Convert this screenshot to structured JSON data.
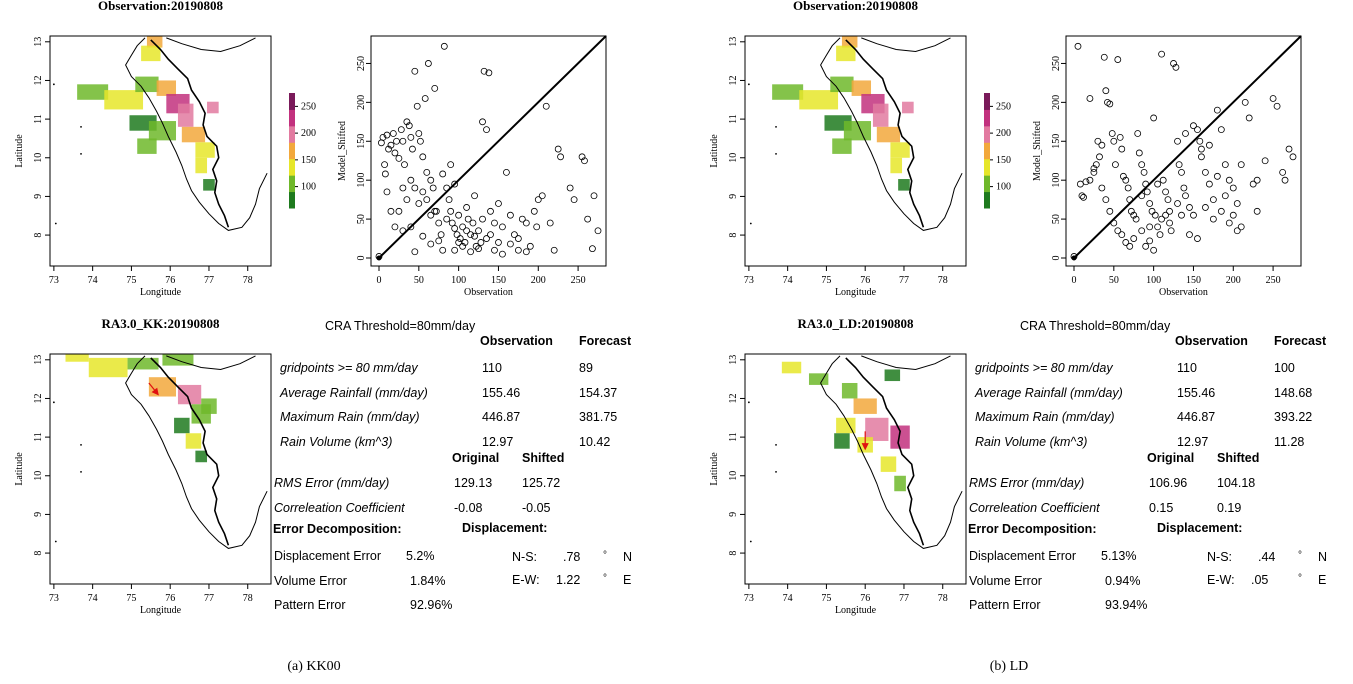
{
  "panels": [
    {
      "caption": "(a) KK00",
      "obs_map": {
        "title": "Observation:20190808"
      },
      "fc_map": {
        "title": "RA3.0_KK:20190808"
      },
      "map_axes": {
        "xlabel": "Longitude",
        "ylabel": "Latitude",
        "xticks": [
          73,
          74,
          75,
          76,
          77,
          78
        ],
        "yticks": [
          8,
          9,
          10,
          11,
          12,
          13
        ]
      },
      "colorbar": {
        "ticks": [
          100,
          150,
          200,
          250
        ],
        "range": [
          60,
          275
        ],
        "colors": [
          "#1e7a1e",
          "#6fb82a",
          "#e6e62a",
          "#f2a83c",
          "#e27aa0",
          "#c2317e",
          "#7a1a5a"
        ]
      },
      "displacement_arrow": {
        "from": [
          75.45,
          12.4
        ],
        "to": [
          75.65,
          12.15
        ]
      },
      "stats": {
        "cra_threshold": "CRA Threshold=80mm/day",
        "col_observation": "Observation",
        "col_forecast": "Forecast",
        "rows": [
          {
            "label": "gridpoints >= 80 mm/day",
            "obs": "110",
            "fc": "89"
          },
          {
            "label": "Average Rainfall (mm/day)",
            "obs": "155.46",
            "fc": "154.37"
          },
          {
            "label": "Maximum Rain (mm/day)",
            "obs": "446.87",
            "fc": "381.75"
          },
          {
            "label": "Rain Volume (km^3)",
            "obs": "12.97",
            "fc": "10.42"
          }
        ],
        "col_original": "Original",
        "col_shifted": "Shifted",
        "rows2": [
          {
            "label": "RMS Error (mm/day)",
            "orig": "129.13",
            "shift": "125.72"
          },
          {
            "label": "Correleation Coefficient",
            "orig": "-0.08",
            "shift": "-0.05"
          }
        ],
        "error_heading": "Error Decomposition:",
        "disp_heading": "Displacement:",
        "errors": [
          {
            "label": "Displacement Error",
            "value": "5.2%"
          },
          {
            "label": "Volume Error",
            "value": "1.84%"
          },
          {
            "label": "Pattern Error",
            "value": "92.96%"
          }
        ],
        "displacement": [
          {
            "label": "N-S:",
            "value": ".78",
            "deg": "°",
            "dir": "N"
          },
          {
            "label": "E-W:",
            "value": "1.22",
            "deg": "°",
            "dir": "E"
          }
        ]
      }
    },
    {
      "caption": "(b) LD",
      "obs_map": {
        "title": "Observation:20190808"
      },
      "fc_map": {
        "title": "RA3.0_LD:20190808"
      },
      "map_axes": {
        "xlabel": "Longitude",
        "ylabel": "Latitude",
        "xticks": [
          73,
          74,
          75,
          76,
          77,
          78
        ],
        "yticks": [
          8,
          9,
          10,
          11,
          12,
          13
        ]
      },
      "colorbar": {
        "ticks": [
          100,
          150,
          200,
          250
        ],
        "range": [
          60,
          275
        ],
        "colors": [
          "#1e7a1e",
          "#6fb82a",
          "#e6e62a",
          "#f2a83c",
          "#e27aa0",
          "#c2317e",
          "#7a1a5a"
        ]
      },
      "displacement_arrow": {
        "from": [
          76.0,
          11.15
        ],
        "to": [
          76.0,
          10.75
        ]
      },
      "stats": {
        "cra_threshold": "CRA Threshold=80mm/day",
        "col_observation": "Observation",
        "col_forecast": "Forecast",
        "rows": [
          {
            "label": "gridpoints >= 80 mm/day",
            "obs": "110",
            "fc": "100"
          },
          {
            "label": "Average Rainfall (mm/day)",
            "obs": "155.46",
            "fc": "148.68"
          },
          {
            "label": "Maximum Rain (mm/day)",
            "obs": "446.87",
            "fc": "393.22"
          },
          {
            "label": "Rain Volume (km^3)",
            "obs": "12.97",
            "fc": "11.28"
          }
        ],
        "col_original": "Original",
        "col_shifted": "Shifted",
        "rows2": [
          {
            "label": "RMS Error (mm/day)",
            "orig": "106.96",
            "shift": "104.18"
          },
          {
            "label": "Correleation Coefficient",
            "orig": "0.15",
            "shift": "0.19"
          }
        ],
        "error_heading": "Error Decomposition:",
        "disp_heading": "Displacement:",
        "errors": [
          {
            "label": "Displacement Error",
            "value": "5.13%"
          },
          {
            "label": "Volume Error",
            "value": "0.94%"
          },
          {
            "label": "Pattern Error",
            "value": "93.94%"
          }
        ],
        "displacement": [
          {
            "label": "N-S:",
            "value": ".44",
            "deg": "°",
            "dir": "N"
          },
          {
            "label": "E-W:",
            "value": ".05",
            "deg": "°",
            "dir": "E"
          }
        ]
      }
    }
  ],
  "chart_data": [
    {
      "type": "scatter",
      "panel": "(a) KK00",
      "xlabel": "Observation",
      "ylabel": "Model_Shifted",
      "xlim": [
        0,
        275
      ],
      "ylim": [
        0,
        275
      ],
      "xticks": [
        0,
        50,
        100,
        150,
        200,
        250
      ],
      "yticks": [
        0,
        50,
        100,
        150,
        200,
        250
      ],
      "reference_line": "y = x",
      "points": [
        [
          3,
          148
        ],
        [
          5,
          155
        ],
        [
          7,
          120
        ],
        [
          8,
          108
        ],
        [
          10,
          158
        ],
        [
          12,
          140
        ],
        [
          15,
          145
        ],
        [
          18,
          160
        ],
        [
          20,
          135
        ],
        [
          22,
          150
        ],
        [
          25,
          128
        ],
        [
          28,
          165
        ],
        [
          30,
          150
        ],
        [
          32,
          120
        ],
        [
          35,
          175
        ],
        [
          38,
          170
        ],
        [
          40,
          155
        ],
        [
          42,
          140
        ],
        [
          45,
          240
        ],
        [
          48,
          195
        ],
        [
          50,
          160
        ],
        [
          52,
          150
        ],
        [
          55,
          130
        ],
        [
          58,
          205
        ],
        [
          60,
          110
        ],
        [
          62,
          250
        ],
        [
          65,
          100
        ],
        [
          68,
          90
        ],
        [
          70,
          218
        ],
        [
          72,
          60
        ],
        [
          75,
          45
        ],
        [
          78,
          30
        ],
        [
          80,
          108
        ],
        [
          82,
          272
        ],
        [
          85,
          90
        ],
        [
          88,
          75
        ],
        [
          90,
          60
        ],
        [
          92,
          45
        ],
        [
          95,
          38
        ],
        [
          98,
          30
        ],
        [
          100,
          55
        ],
        [
          102,
          25
        ],
        [
          105,
          40
        ],
        [
          108,
          20
        ],
        [
          110,
          35
        ],
        [
          112,
          50
        ],
        [
          115,
          30
        ],
        [
          118,
          45
        ],
        [
          120,
          28
        ],
        [
          122,
          15
        ],
        [
          125,
          35
        ],
        [
          128,
          20
        ],
        [
          130,
          175
        ],
        [
          132,
          240
        ],
        [
          135,
          165
        ],
        [
          138,
          238
        ],
        [
          140,
          30
        ],
        [
          145,
          45
        ],
        [
          150,
          20
        ],
        [
          155,
          40
        ],
        [
          160,
          110
        ],
        [
          165,
          55
        ],
        [
          170,
          30
        ],
        [
          175,
          25
        ],
        [
          180,
          50
        ],
        [
          185,
          45
        ],
        [
          190,
          15
        ],
        [
          195,
          60
        ],
        [
          198,
          40
        ],
        [
          200,
          75
        ],
        [
          205,
          80
        ],
        [
          210,
          195
        ],
        [
          215,
          45
        ],
        [
          220,
          10
        ],
        [
          225,
          140
        ],
        [
          228,
          130
        ],
        [
          240,
          90
        ],
        [
          245,
          75
        ],
        [
          255,
          130
        ],
        [
          258,
          125
        ],
        [
          262,
          50
        ],
        [
          268,
          12
        ],
        [
          270,
          80
        ],
        [
          275,
          35
        ],
        [
          55,
          85
        ],
        [
          60,
          75
        ],
        [
          65,
          55
        ],
        [
          70,
          60
        ],
        [
          40,
          100
        ],
        [
          45,
          90
        ],
        [
          50,
          70
        ],
        [
          30,
          90
        ],
        [
          35,
          75
        ],
        [
          25,
          60
        ],
        [
          20,
          40
        ],
        [
          15,
          60
        ],
        [
          10,
          85
        ],
        [
          95,
          10
        ],
        [
          105,
          15
        ],
        [
          115,
          8
        ],
        [
          125,
          12
        ],
        [
          135,
          25
        ],
        [
          145,
          10
        ],
        [
          155,
          5
        ],
        [
          165,
          18
        ],
        [
          175,
          10
        ],
        [
          185,
          8
        ],
        [
          100,
          20
        ],
        [
          110,
          65
        ],
        [
          120,
          80
        ],
        [
          130,
          50
        ],
        [
          140,
          60
        ],
        [
          150,
          70
        ],
        [
          90,
          120
        ],
        [
          95,
          95
        ],
        [
          85,
          50
        ],
        [
          75,
          22
        ],
        [
          65,
          18
        ],
        [
          55,
          28
        ],
        [
          45,
          8
        ],
        [
          40,
          40
        ],
        [
          30,
          35
        ],
        [
          80,
          10
        ],
        [
          0,
          2
        ]
      ]
    },
    {
      "type": "scatter",
      "panel": "(b) LD",
      "xlabel": "Observation",
      "ylabel": "Model_Shifted",
      "xlim": [
        0,
        275
      ],
      "ylim": [
        0,
        275
      ],
      "xticks": [
        0,
        50,
        100,
        150,
        200,
        250
      ],
      "yticks": [
        0,
        50,
        100,
        150,
        200,
        250
      ],
      "reference_line": "y = x",
      "points": [
        [
          5,
          272
        ],
        [
          8,
          95
        ],
        [
          10,
          80
        ],
        [
          12,
          78
        ],
        [
          15,
          98
        ],
        [
          20,
          205
        ],
        [
          25,
          115
        ],
        [
          28,
          120
        ],
        [
          30,
          150
        ],
        [
          32,
          130
        ],
        [
          35,
          145
        ],
        [
          38,
          258
        ],
        [
          40,
          215
        ],
        [
          42,
          200
        ],
        [
          45,
          198
        ],
        [
          48,
          160
        ],
        [
          50,
          150
        ],
        [
          52,
          120
        ],
        [
          55,
          255
        ],
        [
          58,
          155
        ],
        [
          60,
          140
        ],
        [
          62,
          105
        ],
        [
          65,
          100
        ],
        [
          68,
          90
        ],
        [
          70,
          75
        ],
        [
          72,
          60
        ],
        [
          75,
          55
        ],
        [
          78,
          50
        ],
        [
          80,
          160
        ],
        [
          82,
          135
        ],
        [
          85,
          120
        ],
        [
          88,
          110
        ],
        [
          90,
          95
        ],
        [
          92,
          85
        ],
        [
          95,
          70
        ],
        [
          98,
          60
        ],
        [
          100,
          180
        ],
        [
          102,
          55
        ],
        [
          105,
          40
        ],
        [
          108,
          30
        ],
        [
          110,
          262
        ],
        [
          112,
          100
        ],
        [
          115,
          85
        ],
        [
          118,
          75
        ],
        [
          120,
          45
        ],
        [
          122,
          35
        ],
        [
          125,
          250
        ],
        [
          128,
          245
        ],
        [
          130,
          150
        ],
        [
          132,
          120
        ],
        [
          135,
          110
        ],
        [
          138,
          90
        ],
        [
          140,
          80
        ],
        [
          145,
          65
        ],
        [
          150,
          55
        ],
        [
          155,
          165
        ],
        [
          158,
          150
        ],
        [
          160,
          140
        ],
        [
          165,
          110
        ],
        [
          170,
          95
        ],
        [
          175,
          75
        ],
        [
          180,
          190
        ],
        [
          185,
          165
        ],
        [
          190,
          120
        ],
        [
          195,
          100
        ],
        [
          200,
          90
        ],
        [
          205,
          70
        ],
        [
          210,
          40
        ],
        [
          215,
          200
        ],
        [
          220,
          180
        ],
        [
          225,
          95
        ],
        [
          230,
          60
        ],
        [
          250,
          205
        ],
        [
          255,
          195
        ],
        [
          262,
          110
        ],
        [
          265,
          100
        ],
        [
          270,
          140
        ],
        [
          275,
          130
        ],
        [
          45,
          60
        ],
        [
          50,
          45
        ],
        [
          55,
          35
        ],
        [
          60,
          30
        ],
        [
          65,
          20
        ],
        [
          70,
          15
        ],
        [
          75,
          25
        ],
        [
          85,
          35
        ],
        [
          90,
          15
        ],
        [
          95,
          22
        ],
        [
          100,
          10
        ],
        [
          110,
          50
        ],
        [
          115,
          55
        ],
        [
          120,
          60
        ],
        [
          130,
          70
        ],
        [
          140,
          160
        ],
        [
          150,
          170
        ],
        [
          160,
          130
        ],
        [
          170,
          145
        ],
        [
          180,
          105
        ],
        [
          190,
          80
        ],
        [
          200,
          55
        ],
        [
          210,
          120
        ],
        [
          230,
          100
        ],
        [
          240,
          125
        ],
        [
          20,
          100
        ],
        [
          25,
          110
        ],
        [
          35,
          90
        ],
        [
          40,
          75
        ],
        [
          85,
          80
        ],
        [
          95,
          40
        ],
        [
          105,
          95
        ],
        [
          135,
          55
        ],
        [
          145,
          30
        ],
        [
          155,
          25
        ],
        [
          165,
          65
        ],
        [
          175,
          50
        ],
        [
          185,
          60
        ],
        [
          195,
          45
        ],
        [
          205,
          35
        ],
        [
          0,
          2
        ]
      ]
    }
  ]
}
